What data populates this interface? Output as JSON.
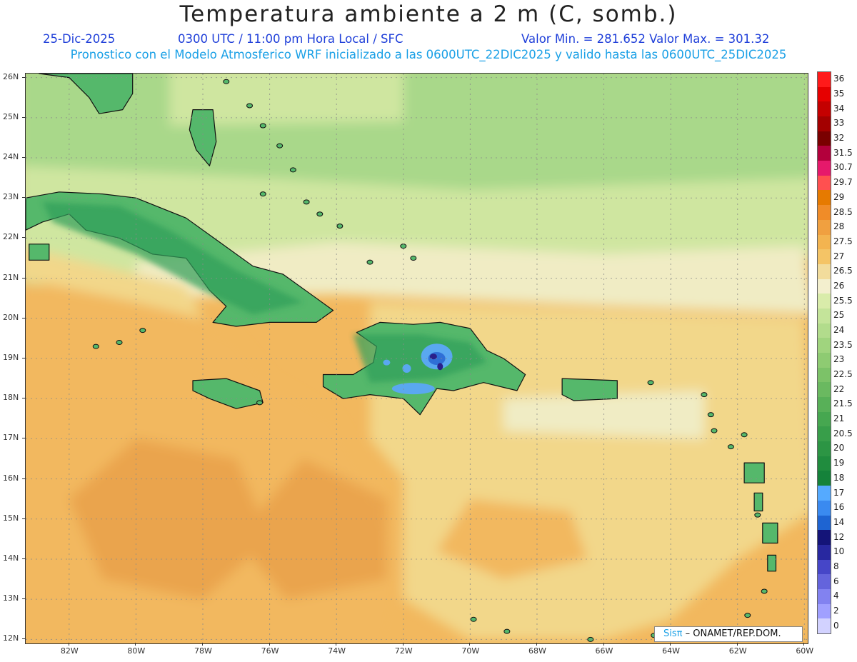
{
  "header": {
    "title": "Temperatura ambiente a 2 m (C, somb.)",
    "date": "25-Dic-2025",
    "time": "0300 UTC / 11:00 pm Hora Local / SFC",
    "min_max": "Valor Min. = 281.652  Valor Max. = 301.32",
    "model_info": "Pronostico con el Modelo Atmosferico WRF inicializado a las 0600UTC_22DIC2025 y valido hasta las  0600UTC_25DIC2025"
  },
  "map": {
    "lon_range": [
      -83.3,
      -59.9
    ],
    "lat_range": [
      11.9,
      26.1
    ],
    "lon_ticks": [
      "82W",
      "80W",
      "78W",
      "76W",
      "74W",
      "72W",
      "70W",
      "68W",
      "66W",
      "64W",
      "62W",
      "60W"
    ],
    "lat_ticks": [
      "26N",
      "25N",
      "24N",
      "23N",
      "22N",
      "21N",
      "20N",
      "19N",
      "18N",
      "17N",
      "16N",
      "15N",
      "14N",
      "13N",
      "12N"
    ],
    "colors": {
      "sea_warm": "#f2b85e",
      "sea_orange": "#eaa44e",
      "sea_mild": "#f2d78a",
      "sea_pale": "#f0ecc4",
      "sea_cool": "#cfe6a0",
      "sea_green": "#a9d88a",
      "land": "#55b86b",
      "land_dark": "#2e9e58",
      "mountain_cold": "#5aa8f0",
      "mountain_colder": "#2f6fd6",
      "peak": "#2a1f8a"
    }
  },
  "legend": {
    "labels": [
      "36",
      "35",
      "34",
      "33",
      "32",
      "31.5",
      "30.7",
      "29.7",
      "29",
      "28.5",
      "28",
      "27.5",
      "27",
      "26.5",
      "26",
      "25.5",
      "25",
      "24",
      "23.5",
      "23",
      "22.5",
      "22",
      "21.5",
      "21",
      "20.5",
      "20",
      "19",
      "18",
      "17",
      "16",
      "14",
      "12",
      "10",
      "8",
      "6",
      "4",
      "2",
      "0"
    ],
    "colors": [
      "#ff1a1a",
      "#e60000",
      "#c40000",
      "#a30000",
      "#7a0000",
      "#b3003c",
      "#e6196b",
      "#ff5050",
      "#e67a00",
      "#f08c28",
      "#f0a040",
      "#f3b450",
      "#f4c466",
      "#f2dc9c",
      "#f3efce",
      "#d9ecaa",
      "#c4e49a",
      "#b2dc8c",
      "#a0d47e",
      "#8ecb72",
      "#7cc268",
      "#6ab960",
      "#58b058",
      "#46a750",
      "#389e4a",
      "#2c9544",
      "#208c3e",
      "#15823a",
      "#55aaff",
      "#3a8af0",
      "#1e64d2",
      "#141478",
      "#2828a0",
      "#4646c8",
      "#6464dc",
      "#8282f0",
      "#a0a0ff",
      "#d2d2ff"
    ]
  },
  "credit": {
    "sis": "Sisπ",
    "org": "– ONAMET/REP.DOM."
  }
}
